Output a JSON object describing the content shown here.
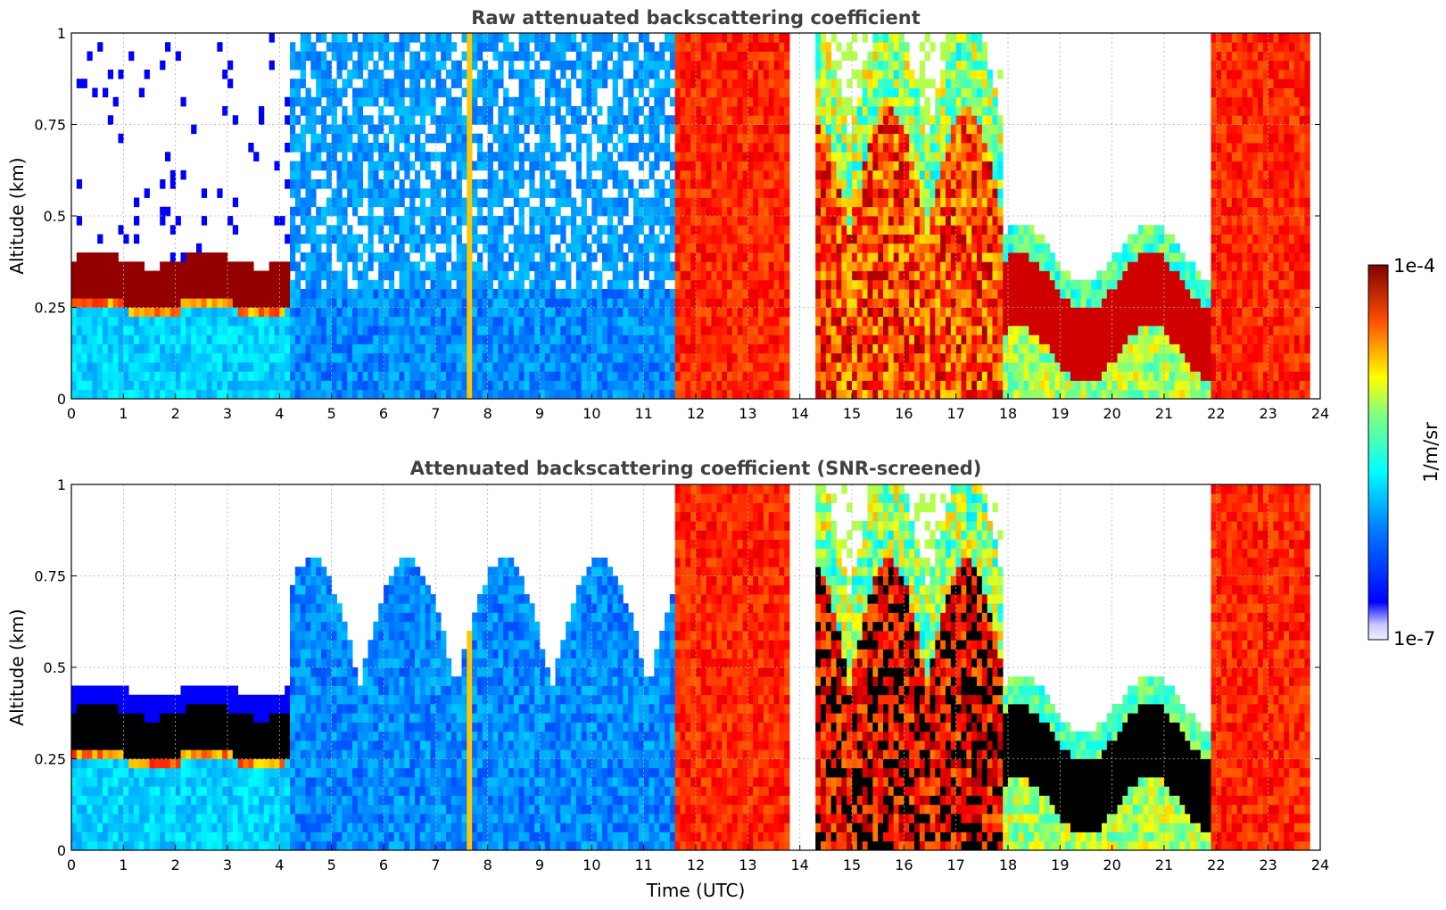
{
  "chart_data": [
    {
      "type": "heatmap",
      "title": "Raw attenuated backscattering coefficient",
      "xlabel": "",
      "ylabel": "Altitude (km)",
      "xlim": [
        0,
        24
      ],
      "ylim": [
        0,
        1
      ],
      "xticks": [
        "0",
        "1",
        "2",
        "3",
        "4",
        "5",
        "6",
        "7",
        "8",
        "9",
        "10",
        "11",
        "12",
        "13",
        "14",
        "15",
        "16",
        "17",
        "18",
        "19",
        "20",
        "21",
        "22",
        "23",
        "24"
      ],
      "yticks": [
        "0",
        "0.25",
        "0.5",
        "0.75",
        "1"
      ],
      "grid": true,
      "colormap": "jet",
      "segments": [
        {
          "t0": 0.0,
          "t1": 4.2,
          "type": "fog",
          "top": 0.38,
          "level": 1.0
        },
        {
          "t0": 4.2,
          "t1": 6.1,
          "type": "clear",
          "level": 0.22
        },
        {
          "t0": 6.1,
          "t1": 7.6,
          "type": "clear",
          "level": 0.22
        },
        {
          "t0": 7.6,
          "t1": 7.7,
          "type": "streak",
          "level": 0.65
        },
        {
          "t0": 7.7,
          "t1": 11.6,
          "type": "clear",
          "level": 0.22
        },
        {
          "t0": 11.6,
          "t1": 13.8,
          "type": "saturated",
          "level": 0.82
        },
        {
          "t0": 13.8,
          "t1": 14.3,
          "type": "gap"
        },
        {
          "t0": 14.3,
          "t1": 17.9,
          "type": "cloud",
          "level": 0.85
        },
        {
          "t0": 17.9,
          "t1": 21.9,
          "type": "layer",
          "top": 0.4,
          "level": 0.95
        },
        {
          "t0": 21.9,
          "t1": 23.8,
          "type": "saturated",
          "level": 0.72
        }
      ]
    },
    {
      "type": "heatmap",
      "title": "Attenuated backscattering coefficient (SNR-screened)",
      "xlabel": "Time (UTC)",
      "ylabel": "Altitude (km)",
      "xlim": [
        0,
        24
      ],
      "ylim": [
        0,
        1
      ],
      "xticks": [
        "0",
        "1",
        "2",
        "3",
        "4",
        "5",
        "6",
        "7",
        "8",
        "9",
        "10",
        "11",
        "12",
        "13",
        "14",
        "15",
        "16",
        "17",
        "18",
        "19",
        "20",
        "21",
        "22",
        "23",
        "24"
      ],
      "yticks": [
        "0",
        "0.25",
        "0.5",
        "0.75",
        "1"
      ],
      "grid": true,
      "colormap": "jet",
      "screened": true
    }
  ],
  "colorbar": {
    "label": "1/m/sr",
    "max_label": "1e-4",
    "min_label": "1e-7",
    "scale": "log",
    "range": [
      1e-07,
      0.0001
    ]
  }
}
